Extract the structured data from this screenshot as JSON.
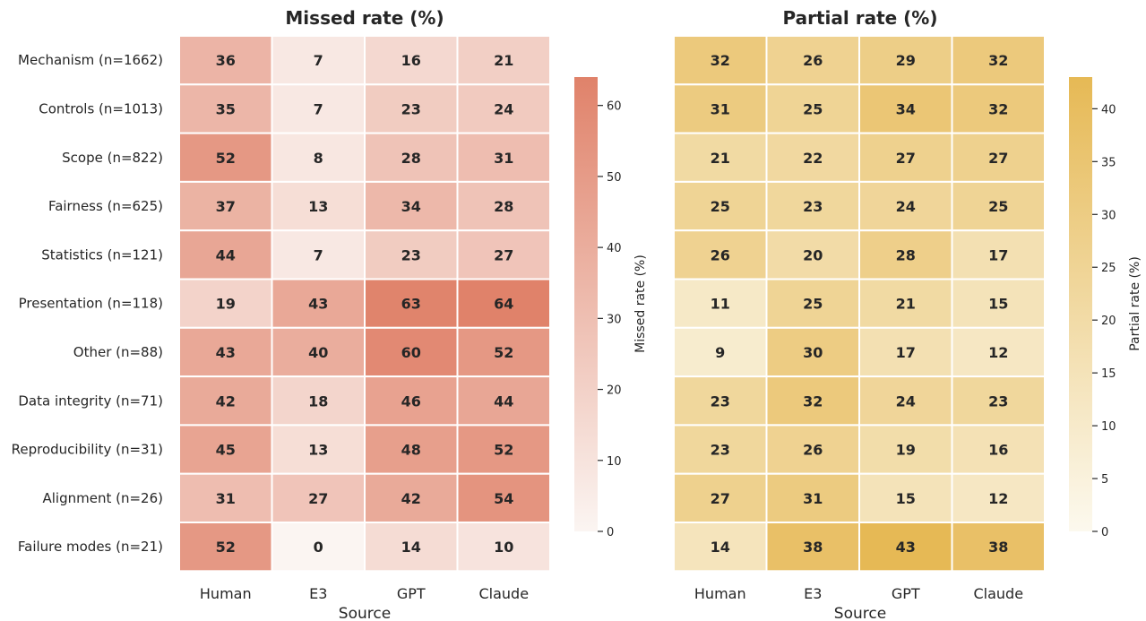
{
  "chart_data": [
    {
      "type": "heatmap",
      "title": "Missed rate (%)",
      "xlabel": "Source",
      "ylabel": "",
      "categories": [
        "Human",
        "E3",
        "GPT",
        "Claude"
      ],
      "rows": [
        "Mechanism (n=1662)",
        "Controls (n=1013)",
        "Scope (n=822)",
        "Fairness (n=625)",
        "Statistics (n=121)",
        "Presentation (n=118)",
        "Other (n=88)",
        "Data integrity (n=71)",
        "Reproducibility (n=31)",
        "Alignment (n=26)",
        "Failure modes (n=21)"
      ],
      "values": [
        [
          36,
          7,
          16,
          21
        ],
        [
          35,
          7,
          23,
          24
        ],
        [
          52,
          8,
          28,
          31
        ],
        [
          37,
          13,
          34,
          28
        ],
        [
          44,
          7,
          23,
          27
        ],
        [
          19,
          43,
          63,
          64
        ],
        [
          43,
          40,
          60,
          52
        ],
        [
          42,
          18,
          46,
          44
        ],
        [
          45,
          13,
          48,
          52
        ],
        [
          31,
          27,
          42,
          54
        ],
        [
          52,
          0,
          14,
          10
        ]
      ],
      "colorbar": {
        "label": "Missed rate (%)",
        "range": [
          0,
          64
        ],
        "ticks": [
          0,
          10,
          20,
          30,
          40,
          50,
          60
        ],
        "color_low": "#fbf5f2",
        "color_high": "#e0826a"
      }
    },
    {
      "type": "heatmap",
      "title": "Partial rate (%)",
      "xlabel": "Source",
      "ylabel": "",
      "categories": [
        "Human",
        "E3",
        "GPT",
        "Claude"
      ],
      "rows": [
        "Mechanism (n=1662)",
        "Controls (n=1013)",
        "Scope (n=822)",
        "Fairness (n=625)",
        "Statistics (n=121)",
        "Presentation (n=118)",
        "Other (n=88)",
        "Data integrity (n=71)",
        "Reproducibility (n=31)",
        "Alignment (n=26)",
        "Failure modes (n=21)"
      ],
      "values": [
        [
          32,
          26,
          29,
          32
        ],
        [
          31,
          25,
          34,
          32
        ],
        [
          21,
          22,
          27,
          27
        ],
        [
          25,
          23,
          24,
          25
        ],
        [
          26,
          20,
          28,
          17
        ],
        [
          11,
          25,
          21,
          15
        ],
        [
          9,
          30,
          17,
          12
        ],
        [
          23,
          32,
          24,
          23
        ],
        [
          23,
          26,
          19,
          16
        ],
        [
          27,
          31,
          15,
          12
        ],
        [
          14,
          38,
          43,
          38
        ]
      ],
      "colorbar": {
        "label": "Partial rate (%)",
        "range": [
          0,
          43
        ],
        "ticks": [
          0,
          5,
          10,
          15,
          20,
          25,
          30,
          35,
          40
        ],
        "color_low": "#fcf9ee",
        "color_high": "#e6b955"
      }
    }
  ]
}
